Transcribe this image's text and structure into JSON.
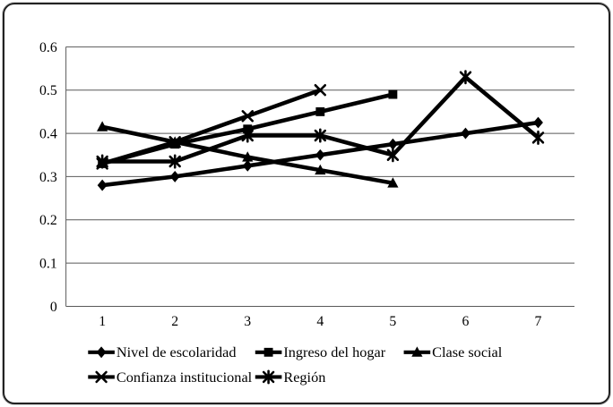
{
  "chart_data": {
    "type": "line",
    "x": [
      "1",
      "2",
      "3",
      "4",
      "5",
      "6",
      "7"
    ],
    "ylim": [
      0,
      0.6
    ],
    "ytick_step": 0.1,
    "ytick_labels": [
      "0",
      "0.1",
      "0.2",
      "0.3",
      "0.4",
      "0.5",
      "0.6"
    ],
    "grid": "horizontal",
    "legend_position": "bottom-two-rows",
    "line_color": "#000000",
    "grid_color": "#595959",
    "series": [
      {
        "name": "Nivel de escolaridad",
        "marker": "diamond",
        "values": [
          0.28,
          0.3,
          0.325,
          0.35,
          0.375,
          0.4,
          0.425
        ]
      },
      {
        "name": "Ingreso del hogar",
        "marker": "square",
        "values": [
          0.33,
          0.375,
          0.41,
          0.45,
          0.49,
          null,
          null
        ]
      },
      {
        "name": "Clase social",
        "marker": "triangle",
        "values": [
          0.415,
          0.38,
          0.345,
          0.315,
          0.285,
          null,
          null
        ]
      },
      {
        "name": "Confianza institucional",
        "marker": "x",
        "values": [
          0.33,
          0.38,
          0.44,
          0.5,
          null,
          null,
          null
        ]
      },
      {
        "name": "Región",
        "marker": "star",
        "values": [
          0.335,
          0.335,
          0.395,
          0.395,
          0.35,
          0.53,
          0.39
        ]
      }
    ]
  }
}
